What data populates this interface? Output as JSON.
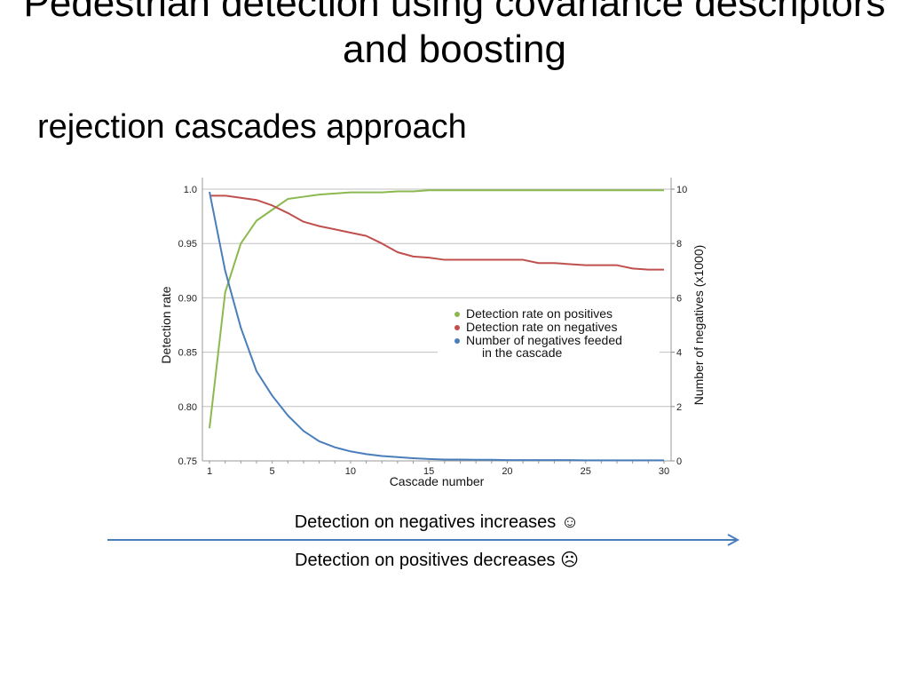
{
  "slide": {
    "title": "Pedestrian detection using covariance descriptors and boosting",
    "subtitle": "rejection cascades approach",
    "caption_top": "Detection on negatives increases ☺",
    "caption_bottom": "Detection on positives decreases ☹",
    "arrow_color": "#4a7ebb"
  },
  "chart_data": {
    "type": "line",
    "title": "",
    "xlabel": "Cascade number",
    "ylabel": "Detection rate",
    "y2label": "Number of negatives (x1000)",
    "xlim": [
      1,
      30
    ],
    "ylim": [
      0.75,
      1.0
    ],
    "y2lim": [
      0,
      10
    ],
    "xticks": [
      "1",
      "5",
      "10",
      "15",
      "20",
      "25",
      "30"
    ],
    "yticks": [
      "0.75",
      "0.80",
      "0.85",
      "0.90",
      "0.95",
      "1.0"
    ],
    "y2ticks": [
      "0",
      "2",
      "4",
      "6",
      "8",
      "10"
    ],
    "grid": true,
    "legend_position": "center-right",
    "x": [
      1,
      2,
      3,
      4,
      5,
      6,
      7,
      8,
      9,
      10,
      11,
      12,
      13,
      14,
      15,
      16,
      17,
      18,
      19,
      20,
      21,
      22,
      23,
      24,
      25,
      26,
      27,
      28,
      29,
      30
    ],
    "series": [
      {
        "name": "Detection rate on positives",
        "axis": "left",
        "color": "#8cb94f",
        "values": [
          0.78,
          0.905,
          0.95,
          0.971,
          0.981,
          0.991,
          0.993,
          0.995,
          0.996,
          0.997,
          0.997,
          0.997,
          0.998,
          0.998,
          0.999,
          0.999,
          0.999,
          0.999,
          0.999,
          0.999,
          0.999,
          0.999,
          0.999,
          0.999,
          0.999,
          0.999,
          0.999,
          0.999,
          0.999,
          0.999
        ]
      },
      {
        "name": "Detection rate on negatives",
        "axis": "left",
        "color": "#c0504d",
        "values": [
          0.994,
          0.994,
          0.992,
          0.99,
          0.985,
          0.978,
          0.97,
          0.966,
          0.963,
          0.96,
          0.957,
          0.95,
          0.942,
          0.938,
          0.937,
          0.935,
          0.935,
          0.935,
          0.935,
          0.935,
          0.935,
          0.932,
          0.932,
          0.931,
          0.93,
          0.93,
          0.93,
          0.927,
          0.926,
          0.926
        ]
      },
      {
        "name": "Number of negatives feeded\n    in the cascade",
        "legend_lines": [
          "Number of negatives feeded",
          "in the cascade"
        ],
        "axis": "right",
        "color": "#4a7ebb",
        "values": [
          9.9,
          7.0,
          4.9,
          3.3,
          2.4,
          1.67,
          1.1,
          0.72,
          0.5,
          0.35,
          0.25,
          0.18,
          0.14,
          0.1,
          0.07,
          0.05,
          0.05,
          0.04,
          0.04,
          0.03,
          0.03,
          0.03,
          0.03,
          0.03,
          0.02,
          0.02,
          0.02,
          0.02,
          0.02,
          0.02
        ]
      }
    ]
  }
}
